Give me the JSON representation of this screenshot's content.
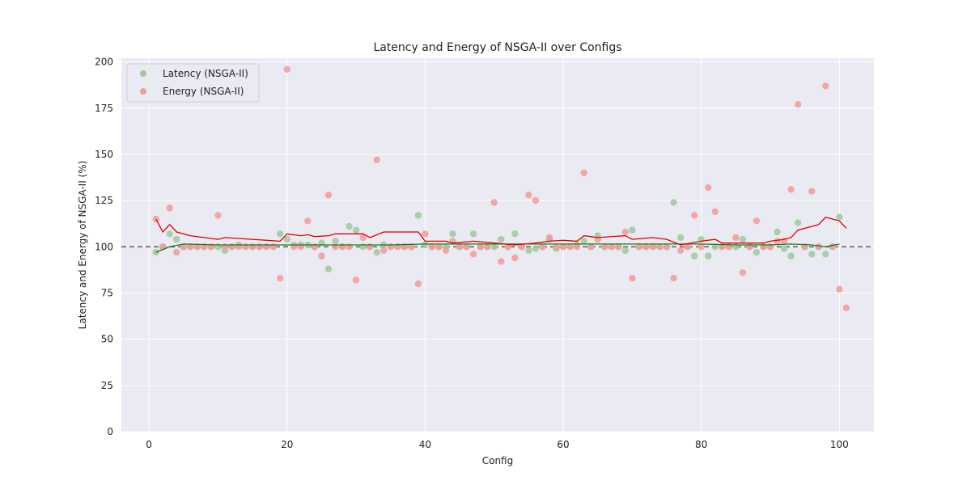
{
  "chart_data": {
    "type": "scatter",
    "title": "Latency and Energy of NSGA-II over Configs",
    "xlabel": "Config",
    "ylabel": "Latency and Energy of NSGA-II (%)",
    "xlim": [
      -4,
      105
    ],
    "ylim": [
      0,
      202
    ],
    "xticks": [
      0,
      20,
      40,
      60,
      80,
      100
    ],
    "yticks": [
      0,
      25,
      50,
      75,
      100,
      125,
      150,
      175,
      200
    ],
    "grid": true,
    "legend_position": "top-left",
    "reference_line": {
      "y": 100,
      "style": "dashed",
      "color": "#666666"
    },
    "colors": {
      "plot_background": "#eaeaf2",
      "grid": "#ffffff",
      "latency_points": "#9dc99d",
      "energy_points": "#f29b9b",
      "latency_line": "#1a7a1a",
      "energy_line": "#e00000"
    },
    "series": [
      {
        "name": "Latency (NSGA-II)",
        "kind": "scatter",
        "color_key": "latency_points",
        "points": [
          [
            1,
            97
          ],
          [
            2,
            100
          ],
          [
            3,
            107
          ],
          [
            4,
            104
          ],
          [
            5,
            100
          ],
          [
            6,
            100
          ],
          [
            7,
            100
          ],
          [
            8,
            100
          ],
          [
            9,
            100
          ],
          [
            10,
            100
          ],
          [
            11,
            98
          ],
          [
            12,
            100
          ],
          [
            13,
            101
          ],
          [
            14,
            100
          ],
          [
            15,
            100
          ],
          [
            16,
            100
          ],
          [
            17,
            100
          ],
          [
            18,
            100
          ],
          [
            19,
            107
          ],
          [
            20,
            104
          ],
          [
            21,
            101
          ],
          [
            22,
            101
          ],
          [
            23,
            101
          ],
          [
            24,
            100
          ],
          [
            25,
            102
          ],
          [
            26,
            88
          ],
          [
            27,
            103
          ],
          [
            28,
            100
          ],
          [
            29,
            111
          ],
          [
            30,
            109
          ],
          [
            31,
            100
          ],
          [
            32,
            100
          ],
          [
            33,
            97
          ],
          [
            34,
            101
          ],
          [
            35,
            100
          ],
          [
            36,
            100
          ],
          [
            37,
            100
          ],
          [
            38,
            100
          ],
          [
            39,
            117
          ],
          [
            40,
            101
          ],
          [
            41,
            100
          ],
          [
            42,
            100
          ],
          [
            43,
            100
          ],
          [
            44,
            107
          ],
          [
            45,
            100
          ],
          [
            46,
            100
          ],
          [
            47,
            107
          ],
          [
            48,
            100
          ],
          [
            49,
            100
          ],
          [
            50,
            100
          ],
          [
            51,
            104
          ],
          [
            52,
            100
          ],
          [
            53,
            107
          ],
          [
            54,
            100
          ],
          [
            55,
            98
          ],
          [
            56,
            99
          ],
          [
            57,
            100
          ],
          [
            58,
            104
          ],
          [
            59,
            99
          ],
          [
            60,
            100
          ],
          [
            61,
            100
          ],
          [
            62,
            101
          ],
          [
            63,
            103
          ],
          [
            64,
            100
          ],
          [
            65,
            106
          ],
          [
            66,
            100
          ],
          [
            67,
            100
          ],
          [
            68,
            100
          ],
          [
            69,
            98
          ],
          [
            70,
            109
          ],
          [
            71,
            100
          ],
          [
            72,
            100
          ],
          [
            73,
            100
          ],
          [
            74,
            100
          ],
          [
            75,
            100
          ],
          [
            76,
            124
          ],
          [
            77,
            105
          ],
          [
            78,
            100
          ],
          [
            79,
            95
          ],
          [
            80,
            104
          ],
          [
            81,
            95
          ],
          [
            82,
            100
          ],
          [
            83,
            100
          ],
          [
            84,
            100
          ],
          [
            85,
            100
          ],
          [
            86,
            104
          ],
          [
            87,
            100
          ],
          [
            88,
            97
          ],
          [
            89,
            100
          ],
          [
            90,
            100
          ],
          [
            91,
            108
          ],
          [
            92,
            99
          ],
          [
            93,
            95
          ],
          [
            94,
            113
          ],
          [
            95,
            100
          ],
          [
            96,
            96
          ],
          [
            97,
            100
          ],
          [
            98,
            96
          ],
          [
            99,
            100
          ],
          [
            100,
            116
          ]
        ]
      },
      {
        "name": "Energy (NSGA-II)",
        "kind": "scatter",
        "color_key": "energy_points",
        "points": [
          [
            1,
            115
          ],
          [
            2,
            100
          ],
          [
            3,
            121
          ],
          [
            4,
            97
          ],
          [
            5,
            100
          ],
          [
            6,
            100
          ],
          [
            7,
            100
          ],
          [
            8,
            100
          ],
          [
            9,
            100
          ],
          [
            10,
            117
          ],
          [
            11,
            100
          ],
          [
            12,
            100
          ],
          [
            13,
            100
          ],
          [
            14,
            100
          ],
          [
            15,
            100
          ],
          [
            16,
            100
          ],
          [
            17,
            100
          ],
          [
            18,
            100
          ],
          [
            19,
            83
          ],
          [
            20,
            196
          ],
          [
            21,
            100
          ],
          [
            22,
            100
          ],
          [
            23,
            114
          ],
          [
            24,
            100
          ],
          [
            25,
            95
          ],
          [
            26,
            128
          ],
          [
            27,
            100
          ],
          [
            28,
            100
          ],
          [
            29,
            100
          ],
          [
            30,
            82
          ],
          [
            31,
            105
          ],
          [
            32,
            100
          ],
          [
            33,
            147
          ],
          [
            34,
            98
          ],
          [
            35,
            100
          ],
          [
            36,
            100
          ],
          [
            37,
            100
          ],
          [
            38,
            100
          ],
          [
            39,
            80
          ],
          [
            40,
            107
          ],
          [
            41,
            100
          ],
          [
            42,
            100
          ],
          [
            43,
            98
          ],
          [
            44,
            103
          ],
          [
            45,
            100
          ],
          [
            46,
            100
          ],
          [
            47,
            96
          ],
          [
            48,
            100
          ],
          [
            49,
            100
          ],
          [
            50,
            124
          ],
          [
            51,
            92
          ],
          [
            52,
            100
          ],
          [
            53,
            94
          ],
          [
            54,
            100
          ],
          [
            55,
            128
          ],
          [
            56,
            125
          ],
          [
            57,
            100
          ],
          [
            58,
            105
          ],
          [
            59,
            100
          ],
          [
            60,
            100
          ],
          [
            61,
            100
          ],
          [
            62,
            100
          ],
          [
            63,
            140
          ],
          [
            64,
            100
          ],
          [
            65,
            104
          ],
          [
            66,
            100
          ],
          [
            67,
            100
          ],
          [
            68,
            100
          ],
          [
            69,
            108
          ],
          [
            70,
            83
          ],
          [
            71,
            100
          ],
          [
            72,
            100
          ],
          [
            73,
            100
          ],
          [
            74,
            100
          ],
          [
            75,
            100
          ],
          [
            76,
            83
          ],
          [
            77,
            98
          ],
          [
            78,
            100
          ],
          [
            79,
            117
          ],
          [
            80,
            100
          ],
          [
            81,
            132
          ],
          [
            82,
            119
          ],
          [
            83,
            100
          ],
          [
            84,
            100
          ],
          [
            85,
            105
          ],
          [
            86,
            86
          ],
          [
            87,
            100
          ],
          [
            88,
            114
          ],
          [
            89,
            100
          ],
          [
            90,
            100
          ],
          [
            91,
            103
          ],
          [
            92,
            103
          ],
          [
            93,
            131
          ],
          [
            94,
            177
          ],
          [
            95,
            100
          ],
          [
            96,
            130
          ],
          [
            97,
            100
          ],
          [
            98,
            187
          ],
          [
            99,
            100
          ],
          [
            100,
            77
          ],
          [
            101,
            67
          ]
        ]
      },
      {
        "name": "",
        "kind": "line",
        "color_key": "latency_line",
        "points": [
          [
            1,
            97
          ],
          [
            3,
            100
          ],
          [
            5,
            101.5
          ],
          [
            10,
            101
          ],
          [
            15,
            101
          ],
          [
            20,
            101
          ],
          [
            25,
            101
          ],
          [
            30,
            101
          ],
          [
            35,
            101
          ],
          [
            40,
            101.5
          ],
          [
            45,
            101.5
          ],
          [
            50,
            101.5
          ],
          [
            55,
            101.5
          ],
          [
            60,
            101.5
          ],
          [
            65,
            101.5
          ],
          [
            70,
            101.5
          ],
          [
            75,
            101.5
          ],
          [
            80,
            101.5
          ],
          [
            85,
            101
          ],
          [
            90,
            101
          ],
          [
            93,
            101.5
          ],
          [
            96,
            101
          ],
          [
            98,
            100
          ],
          [
            100,
            101.5
          ]
        ]
      },
      {
        "name": "",
        "kind": "line",
        "color_key": "energy_line",
        "points": [
          [
            1,
            115
          ],
          [
            2,
            108
          ],
          [
            3,
            112
          ],
          [
            4,
            108
          ],
          [
            6,
            106
          ],
          [
            8,
            105
          ],
          [
            10,
            104
          ],
          [
            11,
            105
          ],
          [
            15,
            104
          ],
          [
            19,
            103
          ],
          [
            20,
            107
          ],
          [
            22,
            106
          ],
          [
            23,
            106.5
          ],
          [
            24,
            105.5
          ],
          [
            26,
            106
          ],
          [
            27,
            107
          ],
          [
            31,
            107
          ],
          [
            32,
            105
          ],
          [
            34,
            108
          ],
          [
            39,
            108
          ],
          [
            40,
            103
          ],
          [
            43,
            103
          ],
          [
            44,
            102
          ],
          [
            47,
            103
          ],
          [
            50,
            102
          ],
          [
            53,
            101
          ],
          [
            56,
            102
          ],
          [
            58,
            103
          ],
          [
            60,
            103.5
          ],
          [
            62,
            103
          ],
          [
            63,
            106
          ],
          [
            65,
            105
          ],
          [
            69,
            106
          ],
          [
            70,
            104
          ],
          [
            73,
            105
          ],
          [
            75,
            104
          ],
          [
            77,
            101
          ],
          [
            80,
            103
          ],
          [
            82,
            104
          ],
          [
            83,
            102
          ],
          [
            85,
            102
          ],
          [
            89,
            102
          ],
          [
            90,
            103
          ],
          [
            92,
            104
          ],
          [
            93,
            105
          ],
          [
            94,
            109
          ],
          [
            96,
            111
          ],
          [
            97,
            112
          ],
          [
            98,
            116
          ],
          [
            100,
            114
          ],
          [
            101,
            110
          ]
        ]
      }
    ]
  },
  "legend": {
    "items": [
      {
        "label": "Latency (NSGA-II)",
        "color": "#9dc99d"
      },
      {
        "label": "Energy (NSGA-II)",
        "color": "#f29b9b"
      }
    ]
  }
}
